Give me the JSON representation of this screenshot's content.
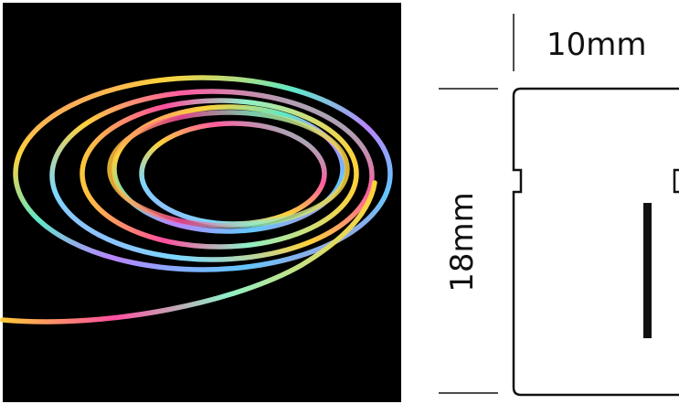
{
  "dimensions": {
    "width": "10mm",
    "height": "18mm"
  }
}
